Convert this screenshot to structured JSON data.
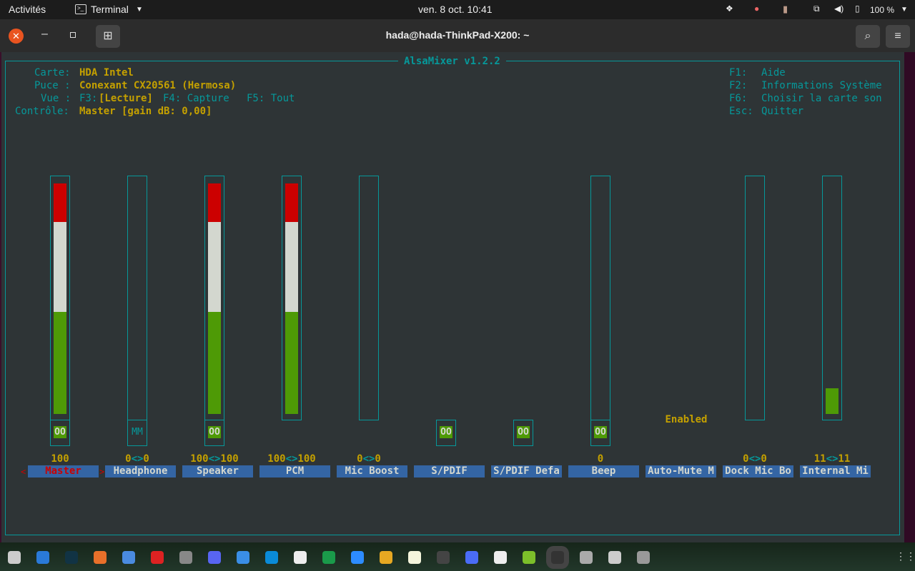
{
  "topbar": {
    "activities": "Activités",
    "app": "Terminal",
    "clock": "ven. 8 oct.  10:41",
    "battery": "100 %",
    "tray_icons": [
      "dropbox-icon",
      "weather-icon",
      "clipboard-icon",
      "network-icon",
      "volume-icon",
      "battery-icon"
    ]
  },
  "window": {
    "title": "hada@hada-ThinkPad-X200: ~"
  },
  "mixer": {
    "title": "AlsaMixer v1.2.2",
    "info": {
      "carte_label": "Carte:",
      "carte": "HDA Intel",
      "puce_label": "Puce :",
      "puce": "Conexant CX20561 (Hermosa)",
      "vue_label": "Vue :",
      "vue_f3": "F3:",
      "vue_current": "[Lecture]",
      "vue_f4": "F4: Capture",
      "vue_f5": "F5: Tout",
      "controle_label": "Contrôle:",
      "controle": "Master [gain dB: 0,00]"
    },
    "help": [
      {
        "key": "F1:",
        "text": "Aide"
      },
      {
        "key": "F2:",
        "text": "Informations Système"
      },
      {
        "key": "F6:",
        "text": "Choisir la carte son"
      },
      {
        "key": "Esc:",
        "text": "Quitter"
      }
    ],
    "channels": [
      {
        "name": "Master",
        "value": "100",
        "level": 100,
        "bar": true,
        "mute": "OO",
        "selected": true
      },
      {
        "name": "Headphone",
        "value": "0<>0",
        "level": 0,
        "bar": true,
        "mute": "MM"
      },
      {
        "name": "Speaker",
        "value": "100<>100",
        "level": 100,
        "bar": true,
        "mute": "OO"
      },
      {
        "name": "PCM",
        "value": "100<>100",
        "level": 100,
        "bar": true
      },
      {
        "name": "Mic Boost",
        "value": "0<>0",
        "level": 0,
        "bar": true
      },
      {
        "name": "S/PDIF",
        "value": "",
        "mute": "OO"
      },
      {
        "name": "S/PDIF Defa",
        "value": "",
        "mute": "OO"
      },
      {
        "name": "Beep",
        "value": "0",
        "level": 0,
        "bar": true,
        "mute": "OO"
      },
      {
        "name": "Auto-Mute M",
        "value": "",
        "enum": "Enabled"
      },
      {
        "name": "Dock Mic Bo",
        "value": "0<>0",
        "level": 0,
        "bar": true
      },
      {
        "name": "Internal Mi",
        "value": "11<>11",
        "level": 11,
        "bar": true
      }
    ],
    "colors": {
      "frame": "#06989a",
      "value": "#c4a000",
      "label_bg": "#3465a4",
      "red": "#cc0000",
      "white": "#d3d7cf",
      "green": "#4e9a06"
    }
  },
  "dock": {
    "apps": [
      "files",
      "vscode",
      "gitkraken",
      "firefox",
      "chromium",
      "opera",
      "safari-like",
      "discord",
      "ampersand",
      "skype",
      "slack",
      "yandex",
      "zoom",
      "vlc-like",
      "notes",
      "calculator",
      "screenshot",
      "emoji",
      "game",
      "terminal",
      "disks",
      "search-viewer",
      "settings"
    ]
  }
}
